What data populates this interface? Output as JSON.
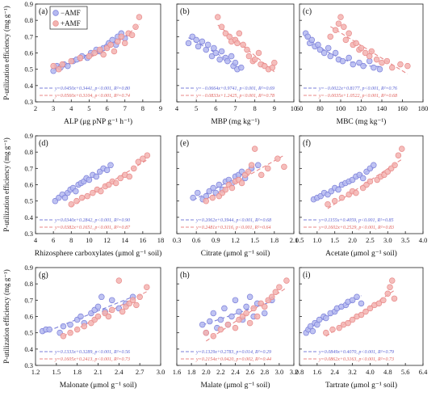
{
  "colors": {
    "amf_minus": "#7b7fd9",
    "amf_plus": "#e88a8a",
    "amf_minus_fill": "#b4b8f0",
    "amf_plus_fill": "#f3b3b0",
    "eq_minus": "#5b63d3",
    "eq_plus": "#e0605c"
  },
  "legend": {
    "minus": "−AMF",
    "plus": "+AMF",
    "position": "top-left of panel (a)"
  },
  "ylabel": "P-utilization efficiency (mg g⁻¹)",
  "chart_data": [
    {
      "id": "a",
      "type": "scatter",
      "panel_label": "(a)",
      "xlabel": "ALP (μg pNP g⁻¹ h⁻¹)",
      "xlim": [
        2,
        9
      ],
      "xticks": [
        "2",
        "3",
        "4",
        "5",
        "6",
        "7",
        "8",
        "9"
      ],
      "ylim": [
        0.3,
        0.9
      ],
      "series": [
        {
          "name": "−AMF",
          "fit": "linear",
          "equation": "y=0.0450x+0.3441, p<0.001, R²=0.80",
          "x": [
            3.0,
            3.2,
            3.4,
            3.6,
            3.8,
            4.1,
            4.3,
            4.6,
            4.9,
            5.1,
            5.4,
            5.6,
            5.8,
            6.0,
            6.1,
            6.3,
            6.5,
            6.6,
            6.8,
            7.0
          ],
          "y": [
            0.49,
            0.52,
            0.51,
            0.53,
            0.52,
            0.55,
            0.56,
            0.58,
            0.57,
            0.6,
            0.62,
            0.61,
            0.63,
            0.64,
            0.66,
            0.68,
            0.65,
            0.7,
            0.72,
            0.69
          ]
        },
        {
          "name": "+AMF",
          "fit": "quadratic",
          "equation": "y=0.0560x+0.3104, p<0.001, R²=0.74",
          "x": [
            3.0,
            3.3,
            3.5,
            4.0,
            4.5,
            5.0,
            5.3,
            5.6,
            5.8,
            6.0,
            6.2,
            6.4,
            6.6,
            6.8,
            7.0,
            7.2,
            7.4,
            7.6,
            7.8
          ],
          "y": [
            0.52,
            0.5,
            0.53,
            0.55,
            0.57,
            0.58,
            0.6,
            0.62,
            0.59,
            0.63,
            0.65,
            0.61,
            0.67,
            0.7,
            0.66,
            0.72,
            0.71,
            0.76,
            0.82
          ]
        }
      ]
    },
    {
      "id": "b",
      "type": "scatter",
      "panel_label": "(b)",
      "xlabel": "MBP (mg kg⁻¹)",
      "xlim": [
        4,
        10
      ],
      "xticks": [
        "4",
        "5",
        "6",
        "7",
        "8",
        "9",
        "10"
      ],
      "ylim": [
        0.3,
        0.9
      ],
      "series": [
        {
          "name": "−AMF",
          "fit": "linear",
          "equation": "y=−0.0664x+0.9741, p<0.001, R²=0.69",
          "x": [
            4.6,
            4.8,
            5.0,
            5.1,
            5.3,
            5.5,
            5.6,
            5.8,
            5.9,
            6.0,
            6.2,
            6.3,
            6.5,
            6.6,
            6.8,
            6.9,
            7.0,
            7.1,
            7.3
          ],
          "y": [
            0.66,
            0.7,
            0.68,
            0.64,
            0.67,
            0.62,
            0.65,
            0.58,
            0.63,
            0.6,
            0.56,
            0.61,
            0.57,
            0.55,
            0.58,
            0.52,
            0.54,
            0.5,
            0.51
          ]
        },
        {
          "name": "+AMF",
          "fit": "linear",
          "equation": "y=−0.0833x+1.2425, p<0.001, R²=0.78",
          "x": [
            6.1,
            6.3,
            6.5,
            6.7,
            6.8,
            7.0,
            7.1,
            7.2,
            7.4,
            7.6,
            7.7,
            7.9,
            8.0,
            8.2,
            8.3,
            8.5,
            8.7,
            8.9,
            9.0
          ],
          "y": [
            0.82,
            0.76,
            0.72,
            0.7,
            0.67,
            0.68,
            0.66,
            0.72,
            0.65,
            0.62,
            0.58,
            0.55,
            0.56,
            0.6,
            0.53,
            0.52,
            0.5,
            0.51,
            0.54
          ]
        }
      ]
    },
    {
      "id": "c",
      "type": "scatter",
      "panel_label": "(c)",
      "xlabel": "MBC (mg kg⁻¹)",
      "xlim": [
        60,
        180
      ],
      "xticks": [
        "60",
        "80",
        "100",
        "120",
        "140",
        "160",
        "180"
      ],
      "ylim": [
        0.3,
        0.9
      ],
      "series": [
        {
          "name": "−AMF",
          "fit": "quadratic",
          "equation": "y=−0.0022x+0.8177, p<0.001, R²=0.76",
          "x": [
            66,
            68,
            70,
            72,
            75,
            78,
            80,
            84,
            88,
            90,
            95,
            98,
            102,
            108,
            112,
            118,
            122,
            128,
            132,
            138
          ],
          "y": [
            0.72,
            0.7,
            0.66,
            0.68,
            0.64,
            0.65,
            0.62,
            0.6,
            0.63,
            0.58,
            0.6,
            0.56,
            0.55,
            0.57,
            0.53,
            0.54,
            0.52,
            0.55,
            0.51,
            0.5
          ]
        },
        {
          "name": "+AMF",
          "fit": "linear",
          "equation": "y=−0.0035x+1.0522, p<0.001, R²=0.68",
          "x": [
            90,
            95,
            98,
            100,
            103,
            105,
            108,
            112,
            115,
            118,
            120,
            124,
            128,
            130,
            135,
            140,
            145,
            150,
            158,
            165
          ],
          "y": [
            0.7,
            0.74,
            0.78,
            0.82,
            0.76,
            0.68,
            0.72,
            0.65,
            0.66,
            0.62,
            0.63,
            0.6,
            0.58,
            0.61,
            0.56,
            0.54,
            0.55,
            0.51,
            0.53,
            0.52
          ]
        }
      ]
    },
    {
      "id": "d",
      "type": "scatter",
      "panel_label": "(d)",
      "xlabel": "Rhizosphere carboxylates (μmol g⁻¹ soil)",
      "xlim": [
        4,
        18
      ],
      "xticks": [
        "4",
        "6",
        "8",
        "10",
        "12",
        "14",
        "16",
        "18"
      ],
      "ylim": [
        0.3,
        0.9
      ],
      "series": [
        {
          "name": "−AMF",
          "fit": "linear",
          "equation": "y=0.0340x+0.2842, p<0.001, R²=0.90",
          "x": [
            6.2,
            6.6,
            7.0,
            7.3,
            7.6,
            7.9,
            8.2,
            8.5,
            8.8,
            9.1,
            9.4,
            9.7,
            10.0,
            10.4,
            10.8,
            11.2,
            11.6,
            12.0,
            12.4
          ],
          "y": [
            0.5,
            0.52,
            0.54,
            0.52,
            0.55,
            0.57,
            0.58,
            0.56,
            0.6,
            0.61,
            0.62,
            0.64,
            0.63,
            0.66,
            0.65,
            0.68,
            0.7,
            0.69,
            0.72
          ]
        },
        {
          "name": "+AMF",
          "fit": "linear",
          "equation": "y=0.0382x+0.1651, p<0.001, R²=0.87",
          "x": [
            8.0,
            8.6,
            9.2,
            9.8,
            10.4,
            10.9,
            11.3,
            11.8,
            12.2,
            12.6,
            13.0,
            13.5,
            14.0,
            14.5,
            15.0,
            15.5,
            16.0,
            16.5
          ],
          "y": [
            0.48,
            0.5,
            0.52,
            0.53,
            0.55,
            0.57,
            0.56,
            0.59,
            0.6,
            0.62,
            0.61,
            0.64,
            0.66,
            0.65,
            0.7,
            0.74,
            0.76,
            0.78
          ]
        }
      ]
    },
    {
      "id": "e",
      "type": "scatter",
      "panel_label": "(e)",
      "xlabel": "Citrate (μmol g⁻¹ soil)",
      "xlim": [
        0.3,
        2.1
      ],
      "xticks": [
        "0.3",
        "0.6",
        "0.9",
        "1.2",
        "1.5",
        "1.8",
        "2.1"
      ],
      "ylim": [
        0.3,
        0.9
      ],
      "series": [
        {
          "name": "−AMF",
          "fit": "linear",
          "equation": "y=0.2062x+0.3944, p<0.001, R²=0.68",
          "x": [
            0.55,
            0.62,
            0.7,
            0.75,
            0.8,
            0.86,
            0.9,
            0.95,
            1.0,
            1.05,
            1.1,
            1.15,
            1.2,
            1.25,
            1.3,
            1.35,
            1.45,
            1.55
          ],
          "y": [
            0.52,
            0.55,
            0.51,
            0.53,
            0.56,
            0.58,
            0.55,
            0.6,
            0.57,
            0.62,
            0.63,
            0.61,
            0.65,
            0.66,
            0.68,
            0.64,
            0.7,
            0.72
          ]
        },
        {
          "name": "+AMF",
          "fit": "linear",
          "equation": "y=0.2481x+0.3116, p<0.001, R²=0.64",
          "x": [
            0.75,
            0.85,
            0.95,
            1.0,
            1.05,
            1.1,
            1.15,
            1.2,
            1.25,
            1.3,
            1.35,
            1.4,
            1.45,
            1.5,
            1.6,
            1.7,
            1.85,
            1.95
          ],
          "y": [
            0.5,
            0.52,
            0.53,
            0.55,
            0.57,
            0.6,
            0.58,
            0.62,
            0.63,
            0.61,
            0.66,
            0.68,
            0.72,
            0.82,
            0.66,
            0.7,
            0.76,
            0.71
          ]
        }
      ]
    },
    {
      "id": "f",
      "type": "scatter",
      "panel_label": "(f)",
      "xlabel": "Acetate (μmol g⁻¹ soil)",
      "xlim": [
        0.5,
        4.0
      ],
      "xticks": [
        "0.5",
        "1.0",
        "1.5",
        "2.0",
        "2.5",
        "3.0",
        "3.5",
        "4.0"
      ],
      "ylim": [
        0.3,
        0.9
      ],
      "series": [
        {
          "name": "−AMF",
          "fit": "linear",
          "equation": "y=0.1155x+0.4059, p<0.001, R²=0.85",
          "x": [
            0.9,
            1.0,
            1.1,
            1.2,
            1.3,
            1.4,
            1.5,
            1.6,
            1.7,
            1.8,
            1.9,
            2.0,
            2.1,
            2.2,
            2.3,
            2.4,
            2.5,
            2.6
          ],
          "y": [
            0.51,
            0.52,
            0.53,
            0.55,
            0.54,
            0.56,
            0.58,
            0.57,
            0.6,
            0.61,
            0.62,
            0.63,
            0.65,
            0.66,
            0.64,
            0.68,
            0.7,
            0.72
          ]
        },
        {
          "name": "+AMF",
          "fit": "linear",
          "equation": "y=0.1602x+0.2529, p<0.001, R²=0.83",
          "x": [
            1.3,
            1.5,
            1.7,
            1.9,
            2.0,
            2.1,
            2.3,
            2.4,
            2.5,
            2.7,
            2.8,
            2.9,
            3.0,
            3.1,
            3.2,
            3.3,
            3.4
          ],
          "y": [
            0.48,
            0.5,
            0.52,
            0.54,
            0.56,
            0.55,
            0.58,
            0.6,
            0.62,
            0.63,
            0.65,
            0.66,
            0.68,
            0.7,
            0.72,
            0.78,
            0.82
          ]
        }
      ]
    },
    {
      "id": "g",
      "type": "scatter",
      "panel_label": "(g)",
      "xlabel": "Malonate (μmol g⁻¹ soil)",
      "xlim": [
        1.2,
        3.0
      ],
      "xticks": [
        "1.2",
        "1.5",
        "1.8",
        "2.1",
        "2.4",
        "2.7",
        "3.0"
      ],
      "ylim": [
        0.3,
        0.9
      ],
      "series": [
        {
          "name": "−AMF",
          "fit": "linear",
          "equation": "y=0.1333x+0.3289, p<0.001, R²=0.56",
          "x": [
            1.3,
            1.35,
            1.4,
            1.55,
            1.6,
            1.7,
            1.8,
            1.85,
            1.9,
            2.0,
            2.05,
            2.1,
            2.15,
            2.2,
            2.3,
            2.4,
            2.5,
            2.6
          ],
          "y": [
            0.51,
            0.52,
            0.52,
            0.5,
            0.54,
            0.55,
            0.58,
            0.6,
            0.56,
            0.62,
            0.64,
            0.66,
            0.72,
            0.63,
            0.7,
            0.65,
            0.68,
            0.72
          ]
        },
        {
          "name": "+AMF",
          "fit": "linear",
          "equation": "y=0.1605x+0.2413, p<0.001, R²=0.73",
          "x": [
            1.6,
            1.7,
            1.8,
            1.9,
            2.0,
            2.05,
            2.1,
            2.2,
            2.25,
            2.3,
            2.4,
            2.45,
            2.5,
            2.55,
            2.6,
            2.65,
            2.7,
            2.8
          ],
          "y": [
            0.48,
            0.5,
            0.52,
            0.54,
            0.56,
            0.58,
            0.6,
            0.62,
            0.6,
            0.64,
            0.82,
            0.63,
            0.66,
            0.68,
            0.7,
            0.67,
            0.72,
            0.78
          ]
        }
      ]
    },
    {
      "id": "h",
      "type": "scatter",
      "panel_label": "(h)",
      "xlabel": "Malate (μmol g⁻¹ soil)",
      "xlim": [
        1.6,
        3.2
      ],
      "xticks": [
        "1.6",
        "1.8",
        "2.0",
        "2.2",
        "2.4",
        "2.6",
        "2.8",
        "3.0",
        "3.2"
      ],
      "ylim": [
        0.3,
        0.9
      ],
      "series": [
        {
          "name": "−AMF",
          "fit": "linear",
          "equation": "y=0.1329x+0.2783, p=0.014, R²=0.29",
          "x": [
            1.95,
            2.0,
            2.05,
            2.1,
            2.15,
            2.2,
            2.25,
            2.3,
            2.35,
            2.4,
            2.45,
            2.5,
            2.55,
            2.6,
            2.65,
            2.7,
            2.8,
            2.9
          ],
          "y": [
            0.55,
            0.5,
            0.57,
            0.62,
            0.53,
            0.58,
            0.65,
            0.55,
            0.6,
            0.7,
            0.63,
            0.58,
            0.66,
            0.72,
            0.6,
            0.68,
            0.62,
            0.7
          ]
        },
        {
          "name": "+AMF",
          "fit": "linear",
          "equation": "y=0.2154x+0.0420, p=0.002, R²=0.44",
          "x": [
            2.0,
            2.1,
            2.2,
            2.3,
            2.4,
            2.45,
            2.5,
            2.55,
            2.6,
            2.65,
            2.7,
            2.75,
            2.8,
            2.85,
            2.9,
            2.95,
            3.0,
            3.1
          ],
          "y": [
            0.5,
            0.48,
            0.52,
            0.55,
            0.53,
            0.58,
            0.6,
            0.62,
            0.56,
            0.65,
            0.6,
            0.68,
            0.66,
            0.7,
            0.72,
            0.75,
            0.78,
            0.82
          ]
        }
      ]
    },
    {
      "id": "i",
      "type": "scatter",
      "panel_label": "(i)",
      "xlabel": "Tartrate (μmol g⁻¹ soil)",
      "xlim": [
        0.8,
        6.4
      ],
      "xticks": [
        "0.8",
        "1.6",
        "2.4",
        "3.2",
        "4.0",
        "4.8",
        "5.6",
        "6.4"
      ],
      "ylim": [
        0.3,
        0.9
      ],
      "series": [
        {
          "name": "−AMF",
          "fit": "linear",
          "equation": "y=0.0849x+0.4070, p<0.001, R²=0.79",
          "x": [
            1.1,
            1.2,
            1.3,
            1.4,
            1.5,
            1.6,
            1.7,
            1.9,
            2.0,
            2.2,
            2.4,
            2.5,
            2.7,
            2.9,
            3.0,
            3.2,
            3.4,
            3.6
          ],
          "y": [
            0.5,
            0.52,
            0.54,
            0.51,
            0.56,
            0.55,
            0.58,
            0.6,
            0.59,
            0.62,
            0.63,
            0.65,
            0.66,
            0.67,
            0.69,
            0.7,
            0.72,
            0.68
          ]
        },
        {
          "name": "+AMF",
          "fit": "linear",
          "equation": "y=0.0862x+0.3163, p<0.001, R²=0.73",
          "x": [
            2.0,
            2.3,
            2.6,
            2.8,
            3.0,
            3.2,
            3.4,
            3.6,
            3.8,
            4.0,
            4.2,
            4.4,
            4.6,
            4.8,
            4.9,
            5.0,
            5.1
          ],
          "y": [
            0.5,
            0.52,
            0.53,
            0.55,
            0.56,
            0.58,
            0.6,
            0.61,
            0.63,
            0.65,
            0.67,
            0.68,
            0.7,
            0.74,
            0.78,
            0.82,
            0.71
          ]
        }
      ]
    }
  ]
}
